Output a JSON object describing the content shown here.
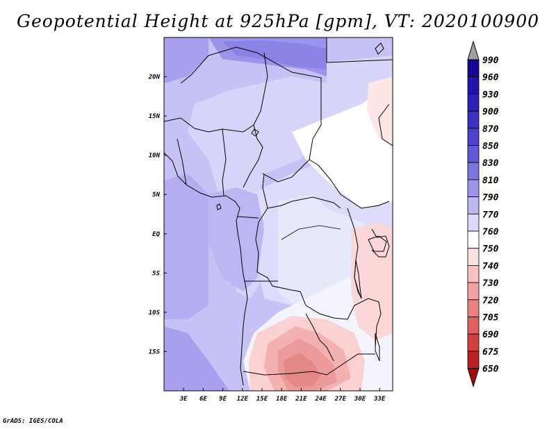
{
  "title": "Geopotential Height at 925hPa [gpm], VT: 2020100900",
  "credit": "GrADS: IGES/COLA",
  "chart_data": {
    "type": "heatmap",
    "title": "Geopotential Height at 925hPa [gpm], VT: 2020100900",
    "variable": "Geopotential Height",
    "level": "925hPa",
    "units": "gpm",
    "valid_time": "2020100900",
    "lon_range": [
      0,
      35
    ],
    "lat_range": [
      -20,
      25
    ],
    "x_ticks": [
      "3E",
      "6E",
      "9E",
      "12E",
      "15E",
      "18E",
      "21E",
      "24E",
      "27E",
      "30E",
      "33E"
    ],
    "x_tick_values": [
      3,
      6,
      9,
      12,
      15,
      18,
      21,
      24,
      27,
      30,
      33
    ],
    "y_ticks": [
      "20N",
      "15N",
      "10N",
      "5N",
      "EQ",
      "5S",
      "10S",
      "15S"
    ],
    "y_tick_values": [
      20,
      15,
      10,
      5,
      0,
      -5,
      -10,
      -15
    ],
    "colorbar_levels": [
      "990",
      "960",
      "930",
      "900",
      "870",
      "850",
      "830",
      "810",
      "790",
      "770",
      "760",
      "750",
      "740",
      "730",
      "720",
      "705",
      "690",
      "675",
      "650"
    ],
    "colorbar_colors": [
      "#a0a0a0",
      "#160696",
      "#2214a6",
      "#2e22b4",
      "#3c30c2",
      "#4d42cc",
      "#6258d6",
      "#7d74e0",
      "#9c94ea",
      "#bcb8f2",
      "#dcdafa",
      "#ffffff",
      "#fde0e0",
      "#f9c2c2",
      "#f3a2a2",
      "#ea8080",
      "#de6060",
      "#d04040",
      "#bd2020",
      "#a50808"
    ]
  }
}
